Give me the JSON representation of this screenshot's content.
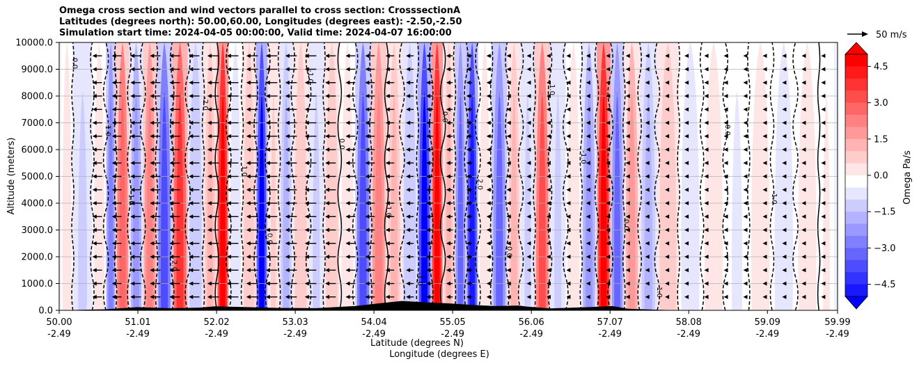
{
  "title_lines": [
    "Omega cross section and wind vectors parallel to cross section: CrosssectionA",
    "Latitudes (degrees north): 50.00,60.00, Longitudes (degrees east): -2.50,-2.50",
    "Simulation start time: 2024-04-05 00:00:00, Valid time: 2024-04-07 16:00:00"
  ],
  "chart_data": {
    "type": "heatmap",
    "title": "Omega cross section and wind vectors parallel to cross section: CrosssectionA",
    "ylabel": "Altitude (meters)",
    "xlabel_lines": [
      "Latitude (degrees N)",
      "Longitude (degrees E)"
    ],
    "ylim": [
      0,
      10000
    ],
    "y_ticks": [
      "0.0",
      "1000.0",
      "2000.0",
      "3000.0",
      "4000.0",
      "5000.0",
      "6000.0",
      "7000.0",
      "8000.0",
      "9000.0",
      "10000.0"
    ],
    "x_ticks_lat": [
      "50.00",
      "51.01",
      "52.02",
      "53.03",
      "54.04",
      "55.05",
      "56.06",
      "57.07",
      "58.08",
      "59.09",
      "59.99"
    ],
    "x_ticks_lon": [
      "-2.49",
      "-2.49",
      "-2.49",
      "-2.49",
      "-2.49",
      "-2.49",
      "-2.49",
      "-2.49",
      "-2.49",
      "-2.49",
      "-2.49"
    ],
    "xlim": [
      50.0,
      59.99
    ],
    "colorbar": {
      "label": "Omega Pa/s",
      "range": [
        -5.0,
        5.0
      ],
      "ticks": [
        "4.5",
        "3.0",
        "1.5",
        "0.0",
        "−1.5",
        "−3.0",
        "−4.5"
      ],
      "extend": "both"
    },
    "omega_bands": [
      {
        "lat": 50.05,
        "omega": 0.6
      },
      {
        "lat": 50.3,
        "omega": -0.8
      },
      {
        "lat": 50.55,
        "omega": 0.4
      },
      {
        "lat": 50.65,
        "omega": -2.5
      },
      {
        "lat": 50.8,
        "omega": 3.0
      },
      {
        "lat": 51.0,
        "omega": -1.8
      },
      {
        "lat": 51.15,
        "omega": 2.5
      },
      {
        "lat": 51.35,
        "omega": -3.5
      },
      {
        "lat": 51.55,
        "omega": 4.0
      },
      {
        "lat": 51.75,
        "omega": -1.2
      },
      {
        "lat": 51.95,
        "omega": 1.5
      },
      {
        "lat": 52.1,
        "omega": 5.0
      },
      {
        "lat": 52.25,
        "omega": -0.6
      },
      {
        "lat": 52.45,
        "omega": 1.2
      },
      {
        "lat": 52.6,
        "omega": -5.0
      },
      {
        "lat": 52.75,
        "omega": 0.8
      },
      {
        "lat": 52.9,
        "omega": -1.5
      },
      {
        "lat": 53.1,
        "omega": 1.2
      },
      {
        "lat": 53.3,
        "omega": -0.8
      },
      {
        "lat": 53.5,
        "omega": 1.0
      },
      {
        "lat": 53.7,
        "omega": 0.5
      },
      {
        "lat": 53.9,
        "omega": -3.5
      },
      {
        "lat": 54.1,
        "omega": 2.5
      },
      {
        "lat": 54.3,
        "omega": 1.5
      },
      {
        "lat": 54.5,
        "omega": -1.2
      },
      {
        "lat": 54.7,
        "omega": -5.0
      },
      {
        "lat": 54.85,
        "omega": 5.0
      },
      {
        "lat": 55.0,
        "omega": 1.5
      },
      {
        "lat": 55.15,
        "omega": -3.0
      },
      {
        "lat": 55.3,
        "omega": -4.5
      },
      {
        "lat": 55.45,
        "omega": 0.6
      },
      {
        "lat": 55.65,
        "omega": -3.0
      },
      {
        "lat": 55.85,
        "omega": 1.5
      },
      {
        "lat": 56.0,
        "omega": -0.8
      },
      {
        "lat": 56.2,
        "omega": 3.5
      },
      {
        "lat": 56.4,
        "omega": -1.0
      },
      {
        "lat": 56.6,
        "omega": 0.5
      },
      {
        "lat": 56.8,
        "omega": -2.0
      },
      {
        "lat": 57.0,
        "omega": 5.0
      },
      {
        "lat": 57.15,
        "omega": -3.0
      },
      {
        "lat": 57.35,
        "omega": 2.0
      },
      {
        "lat": 57.55,
        "omega": -1.5
      },
      {
        "lat": 57.8,
        "omega": 1.0
      },
      {
        "lat": 58.1,
        "omega": -0.4
      },
      {
        "lat": 58.4,
        "omega": 0.6
      },
      {
        "lat": 58.7,
        "omega": -0.3
      },
      {
        "lat": 59.0,
        "omega": 0.5
      },
      {
        "lat": 59.3,
        "omega": -0.5
      },
      {
        "lat": 59.6,
        "omega": 0.4
      },
      {
        "lat": 59.9,
        "omega": 0.3
      }
    ],
    "contour_labels": [
      "0.0",
      "1.0",
      "-1.0",
      "2.0",
      "-2.0",
      "1.0",
      "0.0",
      "-1.0",
      "0.0",
      "1.0",
      "-1.0",
      "0.0",
      "2.0",
      "0.0",
      "1.0",
      "-1.0",
      "0.0",
      "1.0",
      "0.0",
      "-1.0"
    ],
    "quiver_key": {
      "label": "50 m/s",
      "speed": 50
    },
    "wind_vectors": {
      "direction": "southward (toward lower latitude)",
      "columns": [
        {
          "lat": 50.55,
          "speed": 30
        },
        {
          "lat": 50.8,
          "speed": 30
        },
        {
          "lat": 51.05,
          "speed": 33
        },
        {
          "lat": 51.3,
          "speed": 33
        },
        {
          "lat": 51.55,
          "speed": 33
        },
        {
          "lat": 51.8,
          "speed": 33
        },
        {
          "lat": 52.05,
          "speed": 36
        },
        {
          "lat": 52.3,
          "speed": 36
        },
        {
          "lat": 52.55,
          "speed": 36
        },
        {
          "lat": 52.8,
          "speed": 36
        },
        {
          "lat": 53.05,
          "speed": 36
        },
        {
          "lat": 53.3,
          "speed": 36
        },
        {
          "lat": 53.55,
          "speed": 33
        },
        {
          "lat": 53.8,
          "speed": 30
        },
        {
          "lat": 54.05,
          "speed": 30
        },
        {
          "lat": 54.3,
          "speed": 27
        },
        {
          "lat": 54.55,
          "speed": 24
        },
        {
          "lat": 54.8,
          "speed": 22
        },
        {
          "lat": 55.05,
          "speed": 20
        },
        {
          "lat": 55.3,
          "speed": 18
        },
        {
          "lat": 55.55,
          "speed": 16
        },
        {
          "lat": 55.8,
          "speed": 14
        },
        {
          "lat": 56.05,
          "speed": 12
        },
        {
          "lat": 56.3,
          "speed": 11
        },
        {
          "lat": 56.55,
          "speed": 10
        },
        {
          "lat": 56.8,
          "speed": 9
        },
        {
          "lat": 57.05,
          "speed": 8
        },
        {
          "lat": 57.3,
          "speed": 7
        },
        {
          "lat": 57.55,
          "speed": 7
        },
        {
          "lat": 57.8,
          "speed": 6
        },
        {
          "lat": 58.05,
          "speed": 6
        },
        {
          "lat": 58.3,
          "speed": 5
        },
        {
          "lat": 58.55,
          "speed": 5
        },
        {
          "lat": 58.8,
          "speed": 5
        },
        {
          "lat": 59.05,
          "speed": 5
        },
        {
          "lat": 59.3,
          "speed": 5
        },
        {
          "lat": 59.55,
          "speed": 5
        },
        {
          "lat": 59.8,
          "speed": 5
        }
      ]
    },
    "terrain": [
      {
        "lat": 50.0,
        "alt": 0
      },
      {
        "lat": 50.6,
        "alt": 40
      },
      {
        "lat": 51.0,
        "alt": 120
      },
      {
        "lat": 51.4,
        "alt": 80
      },
      {
        "lat": 51.8,
        "alt": 100
      },
      {
        "lat": 52.0,
        "alt": 150
      },
      {
        "lat": 52.4,
        "alt": 120
      },
      {
        "lat": 52.8,
        "alt": 90
      },
      {
        "lat": 53.3,
        "alt": 80
      },
      {
        "lat": 53.8,
        "alt": 160
      },
      {
        "lat": 54.1,
        "alt": 260
      },
      {
        "lat": 54.4,
        "alt": 350
      },
      {
        "lat": 54.7,
        "alt": 300
      },
      {
        "lat": 55.0,
        "alt": 260
      },
      {
        "lat": 55.3,
        "alt": 200
      },
      {
        "lat": 55.6,
        "alt": 160
      },
      {
        "lat": 55.9,
        "alt": 180
      },
      {
        "lat": 56.0,
        "alt": 140
      },
      {
        "lat": 56.3,
        "alt": 70
      },
      {
        "lat": 56.8,
        "alt": 120
      },
      {
        "lat": 57.1,
        "alt": 160
      },
      {
        "lat": 57.3,
        "alt": 60
      },
      {
        "lat": 57.7,
        "alt": 20
      },
      {
        "lat": 58.0,
        "alt": 0
      },
      {
        "lat": 59.99,
        "alt": 0
      }
    ]
  }
}
